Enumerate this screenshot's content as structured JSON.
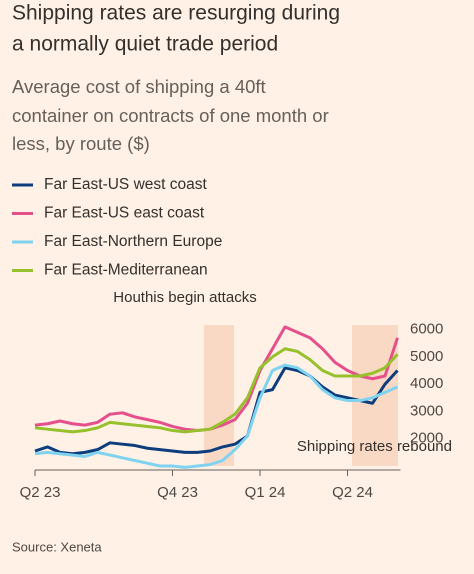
{
  "title": [
    "Shipping rates are resurging during",
    "a normally quiet trade period"
  ],
  "chart_data": {
    "type": "line",
    "subtitle": [
      "Average cost of shipping a 40ft",
      "container on contracts of one month or",
      "less, by route ($)"
    ],
    "categories": [
      "Q2 23",
      null,
      null,
      null,
      null,
      null,
      null,
      null,
      null,
      null,
      null,
      "Q4 23",
      null,
      null,
      null,
      null,
      null,
      null,
      "Q1 24",
      null,
      null,
      null,
      null,
      null,
      null,
      "Q2 24",
      null,
      null,
      null,
      null
    ],
    "series": [
      {
        "name": "Far East-US west coast",
        "color": "#0d3d7d",
        "values": [
          1550,
          1700,
          1500,
          1450,
          1500,
          1600,
          1850,
          1800,
          1750,
          1650,
          1600,
          1550,
          1500,
          1500,
          1550,
          1700,
          1800,
          2100,
          3700,
          3800,
          4600,
          4500,
          4300,
          3900,
          3600,
          3500,
          3400,
          3300,
          4000,
          4500
        ]
      },
      {
        "name": "Far East-US east coast",
        "color": "#e5508c",
        "values": [
          2500,
          2550,
          2650,
          2550,
          2500,
          2600,
          2900,
          2950,
          2800,
          2700,
          2600,
          2450,
          2350,
          2300,
          2350,
          2500,
          2700,
          3300,
          4500,
          5300,
          6100,
          5900,
          5700,
          5300,
          4800,
          4500,
          4300,
          4200,
          4300,
          5700
        ]
      },
      {
        "name": "Far East-Northern Europe",
        "color": "#7fd3f0",
        "values": [
          1450,
          1500,
          1450,
          1400,
          1350,
          1500,
          1400,
          1300,
          1200,
          1100,
          1000,
          1000,
          950,
          1000,
          1050,
          1200,
          1600,
          2100,
          3500,
          4500,
          4700,
          4600,
          4300,
          3800,
          3500,
          3400,
          3400,
          3500,
          3700,
          3900
        ]
      },
      {
        "name": "Far East-Mediterranean",
        "color": "#96c12c",
        "values": [
          2400,
          2350,
          2300,
          2250,
          2300,
          2400,
          2600,
          2550,
          2500,
          2450,
          2400,
          2300,
          2250,
          2300,
          2350,
          2600,
          2900,
          3500,
          4600,
          5000,
          5300,
          5200,
          4900,
          4500,
          4300,
          4300,
          4300,
          4400,
          4600,
          5100
        ]
      }
    ],
    "ylim": [
      1000,
      6500
    ],
    "yticks": [
      2000,
      3000,
      4000,
      5000,
      6000
    ],
    "annotations": [
      "Houthis begin attacks",
      "Shipping rates rebound"
    ],
    "source": "Source: Xeneta"
  }
}
